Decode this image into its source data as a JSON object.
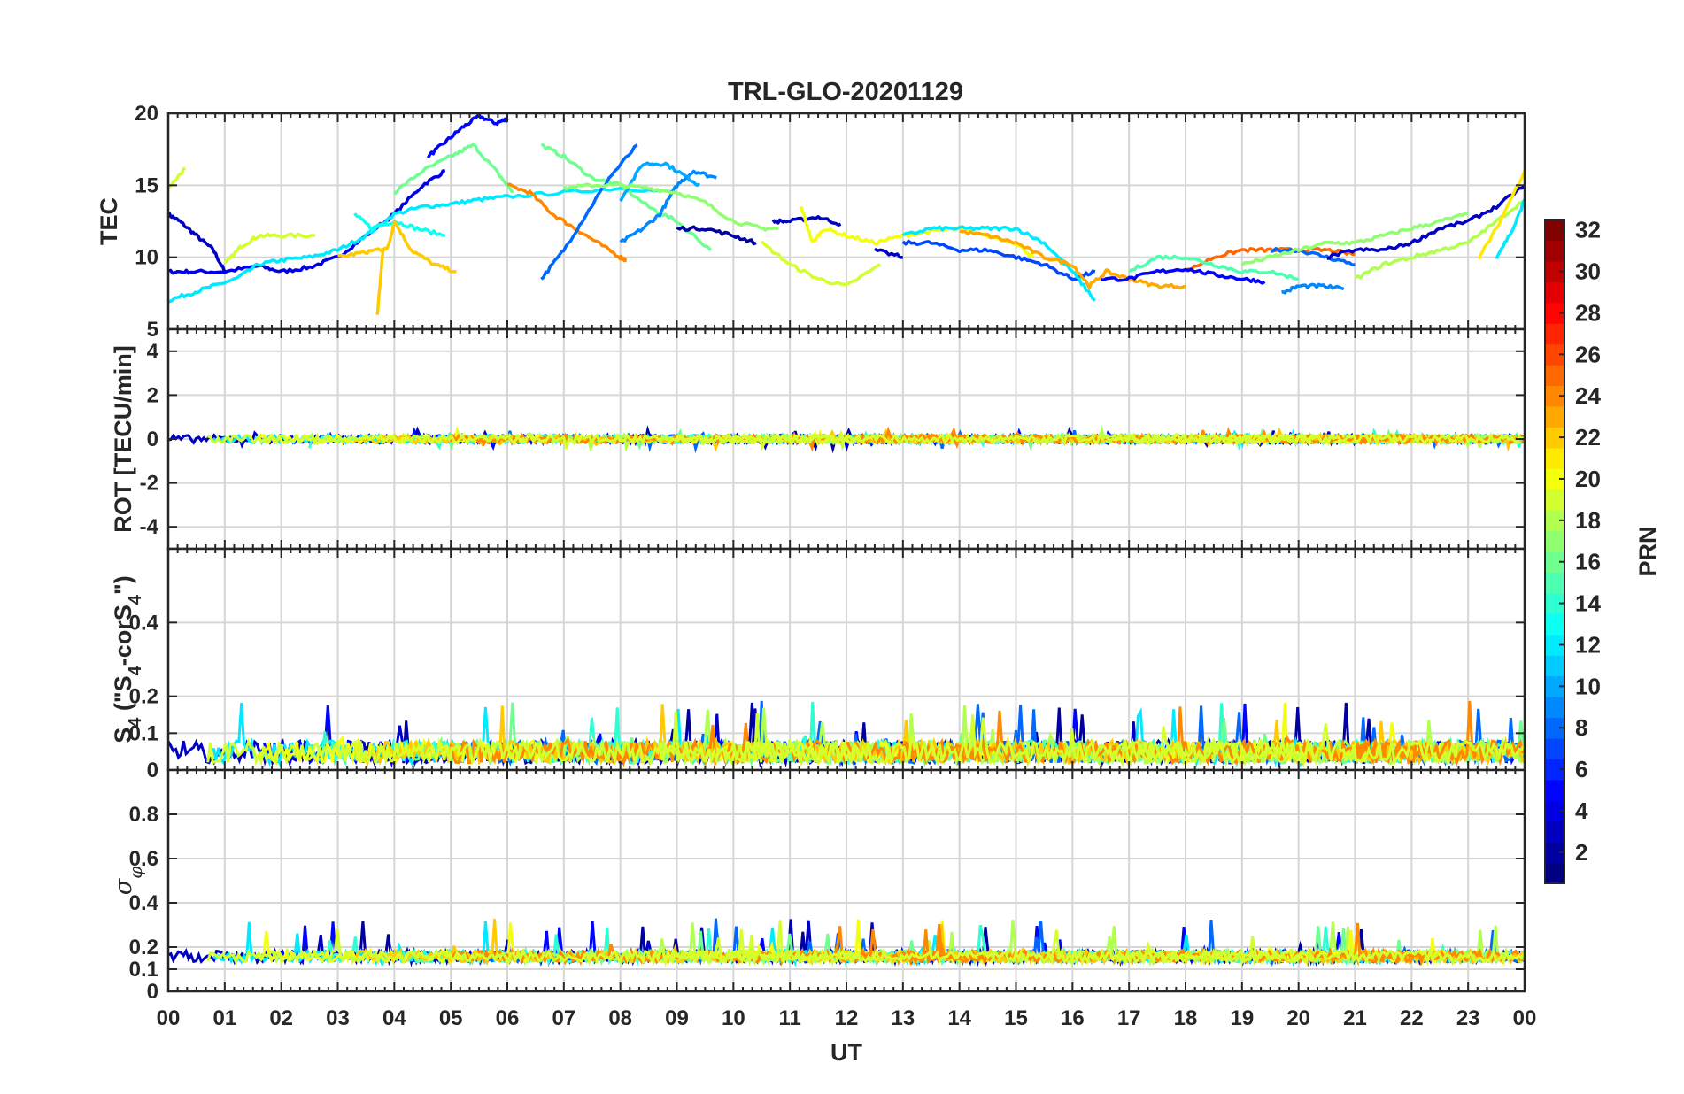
{
  "chart_data": {
    "type": "line",
    "title": "TRL-GLO-20201129",
    "xlabel": "UT",
    "x_ticks": [
      "00",
      "01",
      "02",
      "03",
      "04",
      "05",
      "06",
      "07",
      "08",
      "09",
      "10",
      "11",
      "12",
      "13",
      "14",
      "15",
      "16",
      "17",
      "18",
      "19",
      "20",
      "21",
      "22",
      "23",
      "00"
    ],
    "x_range": [
      0,
      24
    ],
    "panels": [
      {
        "id": "tec",
        "ylabel": "TEC",
        "ylim": [
          5,
          20
        ],
        "y_ticks": [
          5,
          10,
          15,
          20
        ],
        "y_tick_labels": [
          "5",
          "10",
          "15",
          "20"
        ],
        "series": [
          {
            "prn": 3,
            "x": [
              0,
              0.2,
              0.5,
              0.8,
              1.0
            ],
            "y": [
              13.0,
              12.5,
              11.5,
              10.5,
              9.0
            ]
          },
          {
            "prn": 4,
            "x": [
              0,
              0.4,
              1.0,
              1.6,
              2.0,
              2.5,
              3.0,
              3.5,
              4.0,
              4.5,
              4.9
            ],
            "y": [
              9.0,
              9.0,
              9.0,
              9.4,
              9.0,
              9.3,
              10.0,
              11.5,
              13.0,
              15.0,
              16.0
            ]
          },
          {
            "prn": 5,
            "x": [
              4.6,
              4.9,
              5.2,
              5.5,
              5.8,
              6.0
            ],
            "y": [
              17.0,
              18.0,
              19.0,
              19.8,
              19.3,
              19.6
            ]
          },
          {
            "prn": 19,
            "x": [
              0,
              0.3
            ],
            "y": [
              14.8,
              16.2
            ]
          },
          {
            "prn": 19,
            "x": [
              1.0,
              1.3,
              1.6,
              2.0,
              2.6
            ],
            "y": [
              9.5,
              10.8,
              11.5,
              11.5,
              11.5
            ]
          },
          {
            "prn": 12,
            "x": [
              0,
              0.4,
              0.8,
              1.2,
              1.6,
              2.0,
              2.5,
              3.0,
              3.5,
              4.0,
              4.5,
              5.0,
              5.5,
              6.0,
              7.0,
              8.0,
              9.0
            ],
            "y": [
              7.0,
              7.5,
              8.0,
              8.5,
              9.5,
              9.8,
              10.0,
              10.5,
              11.5,
              13.0,
              13.5,
              13.7,
              14.0,
              14.2,
              14.5,
              14.8,
              14.5
            ]
          },
          {
            "prn": 13,
            "x": [
              3.3,
              3.6,
              4.0,
              4.4,
              4.9
            ],
            "y": [
              13.0,
              12.0,
              12.5,
              12.0,
              11.5
            ]
          },
          {
            "prn": 16,
            "x": [
              4.0,
              4.5,
              5.0,
              5.4,
              5.8,
              6.1
            ],
            "y": [
              14.5,
              16.0,
              17.0,
              17.8,
              16.0,
              14.5
            ]
          },
          {
            "prn": 22,
            "x": [
              3.7,
              3.8,
              3.9,
              4.0,
              4.3,
              4.7,
              5.1
            ],
            "y": [
              6.0,
              10.5,
              10.8,
              12.5,
              10.5,
              9.5,
              9.0
            ]
          },
          {
            "prn": 22,
            "x": [
              3.0,
              3.4,
              3.8
            ],
            "y": [
              10.0,
              10.3,
              10.6
            ]
          },
          {
            "prn": 24,
            "x": [
              6.0,
              6.4,
              6.8,
              7.2,
              7.6,
              8.0,
              8.1
            ],
            "y": [
              15.0,
              14.5,
              13.0,
              12.0,
              11.0,
              10.0,
              9.8
            ]
          },
          {
            "prn": 16,
            "x": [
              6.6,
              7.0,
              7.5,
              8.0,
              8.5,
              9.0,
              9.6
            ],
            "y": [
              17.8,
              17.0,
              15.5,
              15.0,
              13.5,
              12.5,
              10.5
            ]
          },
          {
            "prn": 8,
            "x": [
              6.6,
              7.0,
              7.4,
              7.8,
              8.3
            ],
            "y": [
              8.5,
              10.5,
              13.0,
              15.5,
              17.8
            ]
          },
          {
            "prn": 9,
            "x": [
              8.0,
              8.4,
              8.7,
              9.0,
              9.3,
              9.7
            ],
            "y": [
              11.0,
              12.0,
              13.0,
              15.0,
              16.0,
              15.5
            ]
          },
          {
            "prn": 10,
            "x": [
              8.0,
              8.4,
              8.8,
              9.2,
              9.4
            ],
            "y": [
              14.0,
              16.5,
              16.5,
              15.5,
              15.0
            ]
          },
          {
            "prn": 17,
            "x": [
              7.0,
              7.5,
              8.0,
              8.5,
              9.0,
              9.5,
              10.0,
              10.5,
              10.8
            ],
            "y": [
              14.8,
              15.0,
              15.0,
              14.8,
              14.5,
              13.8,
              12.5,
              12.0,
              12.0
            ]
          },
          {
            "prn": 2,
            "x": [
              9.0,
              9.5,
              10.0,
              10.4
            ],
            "y": [
              12.0,
              12.0,
              11.5,
              11.0
            ]
          },
          {
            "prn": 3,
            "x": [
              10.7,
              11.0,
              11.5,
              11.9
            ],
            "y": [
              12.5,
              12.5,
              12.8,
              12.3
            ]
          },
          {
            "prn": 19,
            "x": [
              10.5,
              11.0,
              11.5,
              12.0,
              12.6
            ],
            "y": [
              11.0,
              9.5,
              8.5,
              8.0,
              9.5
            ]
          },
          {
            "prn": 20,
            "x": [
              11.2,
              11.4,
              11.6,
              12.0,
              12.5,
              13.0,
              13.5,
              14.0,
              14.5,
              15.0,
              15.3
            ],
            "y": [
              13.5,
              11.0,
              12.0,
              11.5,
              11.0,
              11.5,
              11.8,
              12.0,
              11.5,
              11.0,
              10.0
            ]
          },
          {
            "prn": 3,
            "x": [
              12.5,
              13.0
            ],
            "y": [
              10.5,
              10.0
            ]
          },
          {
            "prn": 7,
            "x": [
              13.0,
              13.5,
              14.0,
              14.5,
              15.0,
              15.5,
              16.0,
              16.4
            ],
            "y": [
              11.0,
              11.0,
              10.5,
              10.5,
              10.0,
              9.5,
              8.5,
              9.0
            ]
          },
          {
            "prn": 12,
            "x": [
              13.0,
              13.5,
              14.0,
              14.5,
              15.0,
              15.5,
              16.0,
              16.4
            ],
            "y": [
              11.5,
              12.0,
              12.0,
              12.0,
              12.0,
              11.0,
              9.0,
              7.0
            ]
          },
          {
            "prn": 23,
            "x": [
              14.0,
              14.5,
              15.0,
              15.5,
              16.0,
              16.3,
              16.6,
              17.0,
              17.5,
              18.0
            ],
            "y": [
              11.8,
              11.5,
              11.0,
              10.0,
              9.5,
              8.0,
              9.0,
              8.5,
              8.0,
              8.0
            ]
          },
          {
            "prn": 25,
            "x": [
              18.0,
              18.5,
              19.0,
              19.5,
              20.0,
              20.5,
              21.0
            ],
            "y": [
              9.0,
              10.0,
              10.5,
              10.5,
              10.5,
              10.5,
              10.2
            ]
          },
          {
            "prn": 15,
            "x": [
              17.0,
              17.5,
              18.0,
              18.5,
              19.0,
              19.5,
              20.0
            ],
            "y": [
              9.0,
              10.0,
              10.0,
              9.5,
              9.0,
              9.0,
              8.5
            ]
          },
          {
            "prn": 5,
            "x": [
              16.5,
              17.0,
              17.5,
              18.0,
              18.5,
              19.0,
              19.4
            ],
            "y": [
              8.5,
              8.5,
              9.0,
              9.2,
              8.8,
              8.5,
              8.3
            ]
          },
          {
            "prn": 9,
            "x": [
              19.7,
              20.0,
              20.4,
              20.8
            ],
            "y": [
              7.5,
              8.0,
              8.0,
              7.8
            ]
          },
          {
            "prn": 8,
            "x": [
              19.5,
              20.0,
              20.5,
              21.0
            ],
            "y": [
              10.5,
              10.5,
              10.0,
              9.5
            ]
          },
          {
            "prn": 17,
            "x": [
              19.0,
              19.5,
              20.0,
              20.5,
              21.0,
              21.5,
              22.0,
              22.5,
              23.0
            ],
            "y": [
              9.5,
              10.0,
              10.5,
              11.0,
              11.0,
              11.5,
              12.0,
              12.5,
              13.0
            ]
          },
          {
            "prn": 3,
            "x": [
              20.5,
              21.0,
              21.5,
              22.0,
              22.5,
              23.0,
              23.5,
              24.0
            ],
            "y": [
              10.0,
              10.5,
              10.5,
              11.0,
              12.0,
              12.5,
              13.5,
              15.0
            ]
          },
          {
            "prn": 18,
            "x": [
              21.0,
              21.5,
              22.0,
              22.5,
              23.0,
              23.5,
              24.0
            ],
            "y": [
              8.5,
              9.5,
              10.0,
              10.5,
              11.0,
              12.5,
              14.0
            ]
          },
          {
            "prn": 21,
            "x": [
              23.2,
              23.5,
              24.0
            ],
            "y": [
              10.0,
              12.0,
              16.0
            ]
          },
          {
            "prn": 12,
            "x": [
              23.5,
              23.8,
              24.0
            ],
            "y": [
              10.0,
              12.0,
              14.0
            ]
          }
        ]
      },
      {
        "id": "rot",
        "ylabel": "ROT [TECU/min]",
        "ylim": [
          -5,
          5
        ],
        "y_ticks": [
          -4,
          -2,
          0,
          2,
          4
        ],
        "y_tick_labels": [
          "-4",
          "-2",
          "0",
          "2",
          "4"
        ],
        "band": {
          "center": 0,
          "amplitude": 0.35,
          "spike_max": 0.9
        }
      },
      {
        "id": "s4",
        "ylabel": "S",
        "ylabel_parts": [
          "S",
          "4",
          " (\"S",
          "4",
          "-corS",
          "4",
          "\")"
        ],
        "ylim": [
          0,
          0.6
        ],
        "y_ticks": [
          0,
          0.1,
          0.2,
          0.4
        ],
        "y_tick_labels": [
          "0",
          "0.1",
          "0.2",
          "0.4"
        ],
        "band": {
          "baseline": 0.04,
          "amplitude": 0.06,
          "spike_max": 0.19
        }
      },
      {
        "id": "sigma",
        "ylabel": "σ",
        "ylabel_sub": "φ",
        "ylim": [
          0,
          1.0
        ],
        "y_ticks": [
          0,
          0.1,
          0.2,
          0.4,
          0.6,
          0.8
        ],
        "y_tick_labels": [
          "0",
          "0.1",
          "0.2",
          "0.4",
          "0.6",
          "0.8"
        ],
        "band": {
          "baseline": 0.15,
          "amplitude": 0.05,
          "spike_max": 0.33
        }
      }
    ],
    "colorbar": {
      "label": "PRN",
      "range": [
        1,
        32
      ],
      "ticks": [
        2,
        4,
        6,
        8,
        10,
        12,
        14,
        16,
        18,
        20,
        22,
        24,
        26,
        28,
        30,
        32
      ],
      "tick_labels": [
        "2",
        "4",
        "6",
        "8",
        "10",
        "12",
        "14",
        "16",
        "18",
        "20",
        "22",
        "24",
        "26",
        "28",
        "30",
        "32"
      ],
      "colormap": "jet"
    }
  }
}
